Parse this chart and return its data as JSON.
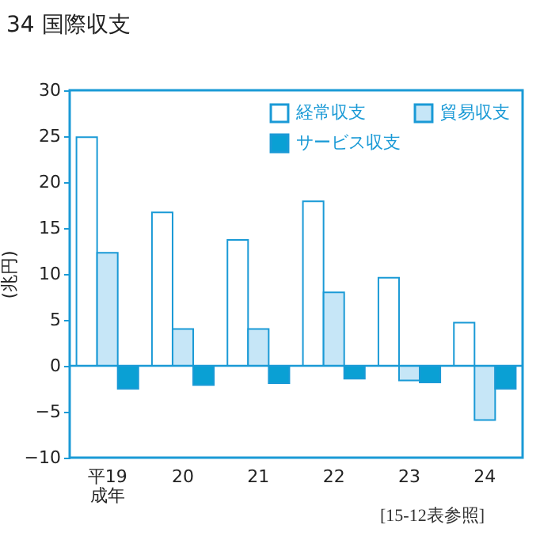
{
  "chart_data": {
    "type": "bar",
    "title": "34  国際収支",
    "ylabel": "(兆円)",
    "categories": [
      "平19\n成年",
      "20",
      "21",
      "22",
      "23",
      "24"
    ],
    "series": [
      {
        "name": "経常収支",
        "color": "#ffffff",
        "values": [
          24.9,
          16.7,
          13.7,
          17.9,
          9.6,
          4.7
        ]
      },
      {
        "name": "貿易収支",
        "color": "#c6e6f7",
        "values": [
          12.3,
          4.0,
          4.0,
          8.0,
          -1.6,
          -5.9
        ]
      },
      {
        "name": "サービス収支",
        "color": "#0aa0d4",
        "values": [
          -2.5,
          -2.1,
          -1.9,
          -1.4,
          -1.8,
          -2.5
        ]
      }
    ],
    "ylim": [
      -10,
      30
    ],
    "yticks": [
      -10,
      -5,
      0,
      5,
      10,
      15,
      20,
      25,
      30
    ],
    "ref_lines": [
      {
        "axis": "y",
        "value": 0,
        "color": "#1a9ad6"
      }
    ],
    "legend": "top right",
    "annotations": [
      "[15-12表参照]"
    ]
  }
}
